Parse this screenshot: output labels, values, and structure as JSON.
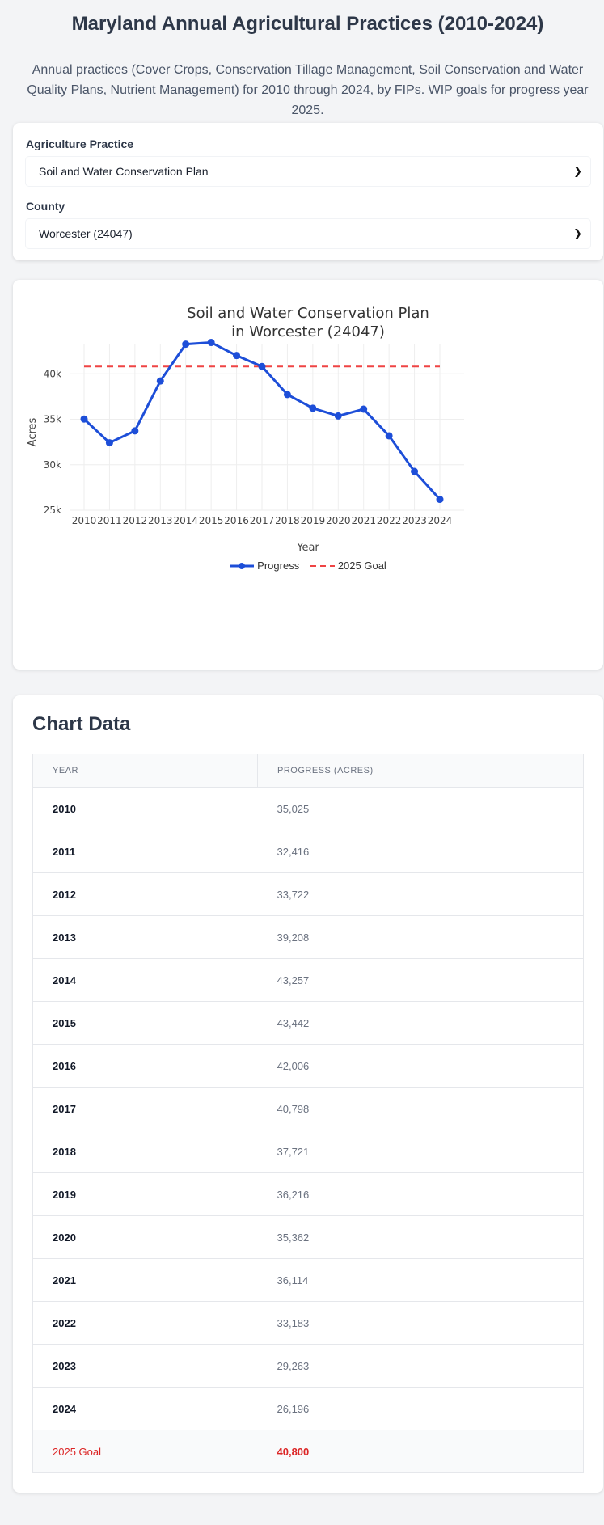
{
  "page": {
    "title": "Maryland Annual Agricultural Practices (2010-2024)",
    "subtitle": "Annual practices (Cover Crops, Conservation Tillage Management, Soil Conservation and Water Quality Plans, Nutrient Management) for 2010 through 2024, by FIPs. WIP goals for progress year 2025."
  },
  "filters": {
    "practice_label": "Agriculture Practice",
    "practice_value": "Soil and Water Conservation Plan",
    "county_label": "County",
    "county_value": "Worcester (24047)"
  },
  "chart_data": {
    "type": "line",
    "title_line1": "Soil and Water Conservation Plan",
    "title_line2": "in Worcester (24047)",
    "xlabel": "Year",
    "ylabel": "Acres",
    "ylim": [
      25000,
      45000
    ],
    "yticks": [
      "25k",
      "30k",
      "35k",
      "40k"
    ],
    "ytick_values": [
      25000,
      30000,
      35000,
      40000
    ],
    "x": [
      "2010",
      "2011",
      "2012",
      "2013",
      "2014",
      "2015",
      "2016",
      "2017",
      "2018",
      "2019",
      "2020",
      "2021",
      "2022",
      "2023",
      "2024"
    ],
    "series": [
      {
        "name": "Progress",
        "values": [
          35025,
          32416,
          33722,
          39208,
          43257,
          43442,
          42006,
          40798,
          37721,
          36216,
          35362,
          36114,
          33183,
          29263,
          26196
        ],
        "color": "#1d4ed8"
      },
      {
        "name": "2025 Goal",
        "values": [
          40800,
          40800,
          40800,
          40800,
          40800,
          40800,
          40800,
          40800,
          40800,
          40800,
          40800,
          40800,
          40800,
          40800,
          40800
        ],
        "color": "#ef4444"
      }
    ],
    "legend_position": "bottom"
  },
  "table": {
    "title": "Chart Data",
    "col_year": "YEAR",
    "col_progress": "PROGRESS (ACRES)",
    "rows": [
      {
        "year": "2010",
        "value": "35,025"
      },
      {
        "year": "2011",
        "value": "32,416"
      },
      {
        "year": "2012",
        "value": "33,722"
      },
      {
        "year": "2013",
        "value": "39,208"
      },
      {
        "year": "2014",
        "value": "43,257"
      },
      {
        "year": "2015",
        "value": "43,442"
      },
      {
        "year": "2016",
        "value": "42,006"
      },
      {
        "year": "2017",
        "value": "40,798"
      },
      {
        "year": "2018",
        "value": "37,721"
      },
      {
        "year": "2019",
        "value": "36,216"
      },
      {
        "year": "2020",
        "value": "35,362"
      },
      {
        "year": "2021",
        "value": "36,114"
      },
      {
        "year": "2022",
        "value": "33,183"
      },
      {
        "year": "2023",
        "value": "29,263"
      },
      {
        "year": "2024",
        "value": "26,196"
      }
    ],
    "goal_label": "2025 Goal",
    "goal_value": "40,800"
  }
}
